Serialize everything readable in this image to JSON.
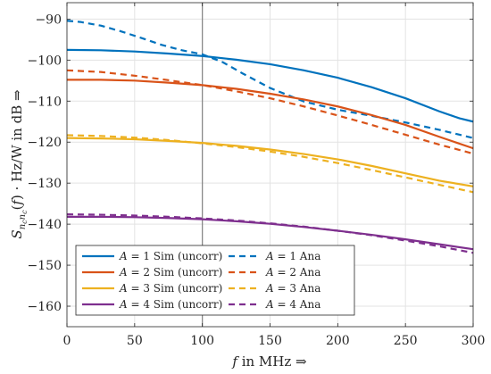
{
  "chart_data": {
    "type": "line",
    "xlabel": "f in MHz ⇒",
    "ylabel": "S_{n_c n_c}(f) · Hz/W in dB ⇒",
    "xlim": [
      0,
      300
    ],
    "ylim": [
      -165,
      -86
    ],
    "x_ticks": [
      0,
      50,
      100,
      150,
      200,
      250,
      300
    ],
    "y_ticks": [
      -90,
      -100,
      -110,
      -120,
      -130,
      -140,
      -150,
      -160
    ],
    "grid": true,
    "legend_position": "bottom-left",
    "vertical_marker_x": 100,
    "colors": {
      "A1": "#0072BD",
      "A2": "#D95319",
      "A3": "#EDB120",
      "A4": "#7E2F8E",
      "marker": "#808080"
    },
    "series": [
      {
        "name": "A = 1 Sim (uncorr)",
        "color": "#0072BD",
        "style": "solid",
        "x": [
          0,
          25,
          50,
          75,
          100,
          125,
          150,
          175,
          200,
          225,
          250,
          275,
          290,
          300
        ],
        "y": [
          -97.5,
          -97.6,
          -97.9,
          -98.4,
          -99.0,
          -99.9,
          -101.0,
          -102.5,
          -104.3,
          -106.6,
          -109.3,
          -112.5,
          -114.2,
          -115.0
        ]
      },
      {
        "name": "A = 1 Ana",
        "color": "#0072BD",
        "style": "dashed",
        "x": [
          0,
          10,
          25,
          40,
          55,
          70,
          85,
          100,
          115,
          130,
          150,
          175,
          200,
          225,
          250,
          275,
          300
        ],
        "y": [
          -90.4,
          -90.7,
          -91.6,
          -93.0,
          -94.6,
          -96.3,
          -97.6,
          -98.6,
          -100.5,
          -103.3,
          -106.8,
          -110.1,
          -112.1,
          -113.6,
          -115.2,
          -117.0,
          -119.0
        ]
      },
      {
        "name": "A = 2 Sim (uncorr)",
        "color": "#D95319",
        "style": "solid",
        "x": [
          0,
          25,
          50,
          75,
          100,
          125,
          150,
          175,
          200,
          225,
          250,
          275,
          300
        ],
        "y": [
          -104.8,
          -104.8,
          -105.0,
          -105.5,
          -106.1,
          -107.0,
          -108.2,
          -109.6,
          -111.3,
          -113.4,
          -115.8,
          -118.7,
          -121.5
        ]
      },
      {
        "name": "A = 2 Ana",
        "color": "#D95319",
        "style": "dashed",
        "x": [
          0,
          25,
          50,
          75,
          100,
          125,
          150,
          175,
          200,
          225,
          250,
          275,
          300
        ],
        "y": [
          -102.5,
          -102.9,
          -103.8,
          -104.9,
          -106.1,
          -107.6,
          -109.3,
          -111.3,
          -113.5,
          -115.8,
          -118.2,
          -120.6,
          -122.8
        ]
      },
      {
        "name": "A = 3 Sim (uncorr)",
        "color": "#EDB120",
        "style": "solid",
        "x": [
          0,
          25,
          50,
          75,
          100,
          125,
          150,
          175,
          200,
          225,
          250,
          275,
          300
        ],
        "y": [
          -119.0,
          -119.1,
          -119.3,
          -119.7,
          -120.2,
          -120.9,
          -121.8,
          -122.9,
          -124.2,
          -125.8,
          -127.6,
          -129.4,
          -130.8
        ]
      },
      {
        "name": "A = 3 Ana",
        "color": "#EDB120",
        "style": "dashed",
        "x": [
          0,
          25,
          50,
          75,
          100,
          125,
          150,
          175,
          200,
          225,
          250,
          275,
          300
        ],
        "y": [
          -118.3,
          -118.5,
          -118.9,
          -119.5,
          -120.3,
          -121.2,
          -122.3,
          -123.6,
          -125.1,
          -126.8,
          -128.6,
          -130.4,
          -132.2
        ]
      },
      {
        "name": "A = 4 Sim (uncorr)",
        "color": "#7E2F8E",
        "style": "solid",
        "x": [
          0,
          25,
          50,
          75,
          100,
          125,
          150,
          175,
          200,
          225,
          250,
          275,
          300
        ],
        "y": [
          -138.2,
          -138.2,
          -138.3,
          -138.5,
          -138.8,
          -139.3,
          -139.9,
          -140.7,
          -141.6,
          -142.6,
          -143.7,
          -144.9,
          -146.1
        ]
      },
      {
        "name": "A = 4 Ana",
        "color": "#7E2F8E",
        "style": "dashed",
        "x": [
          0,
          25,
          50,
          75,
          100,
          125,
          150,
          175,
          200,
          225,
          250,
          275,
          300
        ],
        "y": [
          -137.6,
          -137.7,
          -137.9,
          -138.2,
          -138.6,
          -139.1,
          -139.8,
          -140.6,
          -141.6,
          -142.7,
          -144.0,
          -145.4,
          -147.0
        ]
      }
    ],
    "legend": [
      {
        "series": 0,
        "prefix": "A",
        "value": "= 1 Sim (uncorr)"
      },
      {
        "series": 1,
        "prefix": "A",
        "value": "= 1 Ana"
      },
      {
        "series": 2,
        "prefix": "A",
        "value": "= 2 Sim (uncorr)"
      },
      {
        "series": 3,
        "prefix": "A",
        "value": "= 2 Ana"
      },
      {
        "series": 4,
        "prefix": "A",
        "value": "= 3 Sim (uncorr)"
      },
      {
        "series": 5,
        "prefix": "A",
        "value": "= 3 Ana"
      },
      {
        "series": 6,
        "prefix": "A",
        "value": "= 4 Sim (uncorr)"
      },
      {
        "series": 7,
        "prefix": "A",
        "value": "= 4 Ana"
      }
    ]
  }
}
